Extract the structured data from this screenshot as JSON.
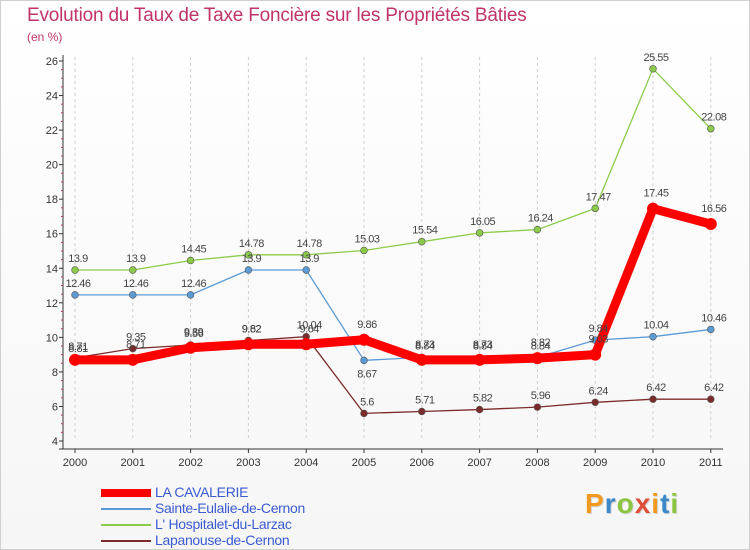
{
  "chart_data": {
    "type": "line",
    "title": "Evolution du Taux de Taxe Foncière sur les Propriétés Bâties",
    "ylabel": "(en %)",
    "xlabel": "",
    "categories": [
      "2000",
      "2001",
      "2002",
      "2003",
      "2004",
      "2005",
      "2006",
      "2007",
      "2008",
      "2009",
      "2010",
      "2011"
    ],
    "ylim": [
      4,
      26
    ],
    "yticks": [
      4,
      6,
      8,
      10,
      12,
      14,
      16,
      18,
      20,
      22,
      24,
      26
    ],
    "grid": "vertical dashed",
    "legend_position": "bottom-left",
    "series": [
      {
        "name": "LA CAVALERIE",
        "color": "#ff0000",
        "values": [
          8.7,
          8.7,
          9.4,
          9.6,
          9.6,
          9.86,
          8.7,
          8.7,
          8.8,
          9.0,
          17.45,
          16.56
        ],
        "labels": [
          "8.71",
          "8.71",
          "9.39",
          "9.62",
          "9.64",
          "9.86",
          "8.73",
          "8.73",
          "8.82",
          "9.03",
          "17.45",
          "16.56"
        ]
      },
      {
        "name": "Sainte-Eulalie-de-Cernon",
        "color": "#5b9bd5",
        "values": [
          12.46,
          12.46,
          12.46,
          13.9,
          13.9,
          8.67,
          8.84,
          8.84,
          8.84,
          9.84,
          10.04,
          10.46
        ],
        "labels": [
          "12.46",
          "12.46",
          "12.46",
          "13.9",
          "13.9",
          "8.67",
          "8.84",
          "8.84",
          "8.84",
          "9.84",
          "10.04",
          "10.46"
        ]
      },
      {
        "name": "L' Hospitalet-du-Larzac",
        "color": "#8ccb4a",
        "values": [
          13.9,
          13.9,
          14.45,
          14.78,
          14.78,
          15.03,
          15.54,
          16.05,
          16.24,
          17.47,
          25.55,
          22.08
        ],
        "labels": [
          "13.9",
          "13.9",
          "14.45",
          "14.78",
          "14.78",
          "15.03",
          "15.54",
          "16.05",
          "16.24",
          "17.47",
          "25.55",
          "22.08"
        ]
      },
      {
        "name": "Lapanouse-de-Cernon",
        "color": "#7b2b2b",
        "values": [
          8.81,
          9.35,
          9.56,
          9.82,
          10.04,
          5.6,
          5.71,
          5.82,
          5.96,
          6.24,
          6.42,
          6.42
        ],
        "labels": [
          "8.81",
          "9.35",
          "9.56",
          "9.82",
          "10.04",
          "5.6",
          "5.71",
          "5.82",
          "5.96",
          "6.24",
          "6.42",
          "6.42"
        ]
      }
    ]
  },
  "branding": {
    "letters": [
      "P",
      "r",
      "o",
      "x",
      "i",
      "t",
      "i"
    ],
    "colors": [
      "#f29a1f",
      "#3b88c8",
      "#8cc63f",
      "#e04e39",
      "#f29a1f",
      "#3b88c8",
      "#8cc63f"
    ]
  }
}
